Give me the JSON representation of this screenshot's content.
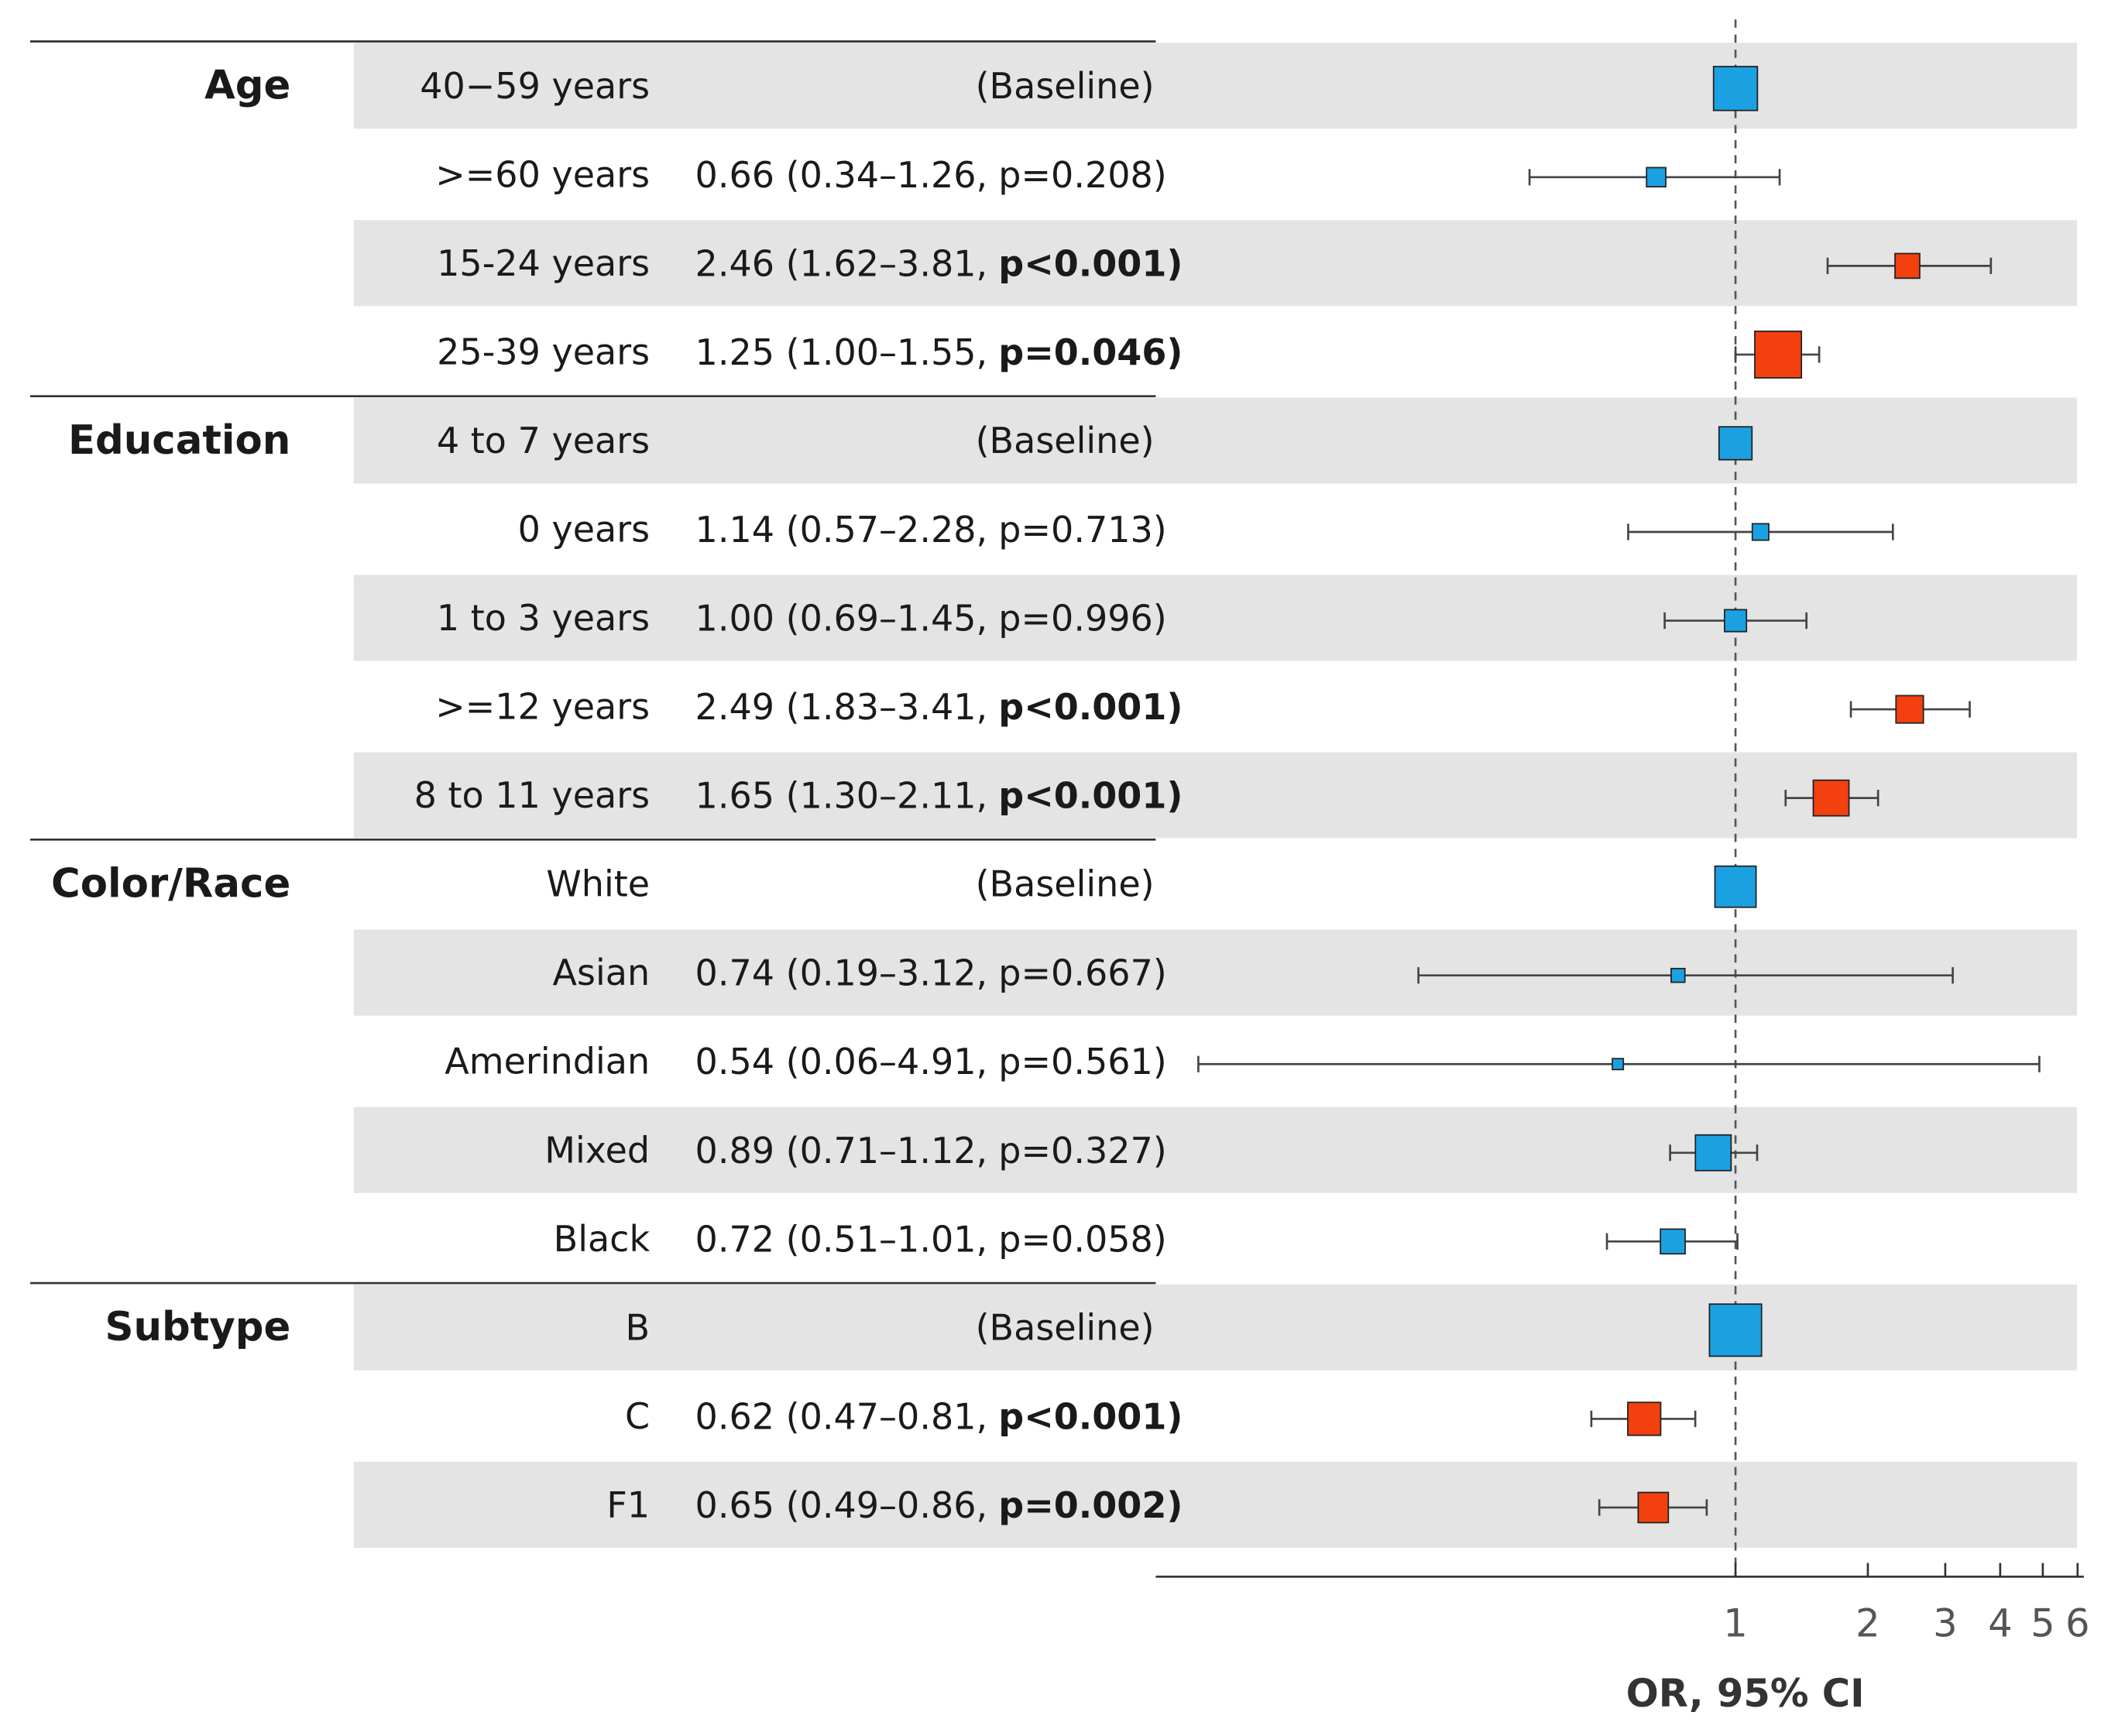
{
  "chart_data": {
    "type": "forest",
    "xlabel": "OR, 95% CI",
    "xscale": "log",
    "xlim": [
      0.048,
      6.2
    ],
    "xticks": [
      1,
      2,
      3,
      4,
      5,
      6
    ],
    "reference_line": 1,
    "groups": [
      {
        "name": "Age",
        "rows": [
          {
            "label": "40−59 years",
            "estimate": 1,
            "note": "(Baseline)",
            "weight": 16,
            "color": "#1ba1e2"
          },
          {
            "label": ">=60 years",
            "estimate": 0.66,
            "ci": [
              0.34,
              1.26
            ],
            "ci_label": "0.66 (0.34–1.26,",
            "p_label": "p=0.208)",
            "significant": false,
            "weight": 7,
            "color": "#1ba1e2"
          },
          {
            "label": "15-24 years",
            "estimate": 2.46,
            "ci": [
              1.62,
              3.81
            ],
            "ci_label": "2.46 (1.62–3.81,",
            "p_label": "p<0.001)",
            "significant": true,
            "weight": 9,
            "color": "#f2400f"
          },
          {
            "label": "25-39 years",
            "estimate": 1.25,
            "ci": [
              1.0,
              1.55
            ],
            "ci_label": "1.25 (1.00–1.55,",
            "p_label": "p=0.046)",
            "significant": true,
            "weight": 17,
            "color": "#f2400f"
          }
        ]
      },
      {
        "name": "Education",
        "rows": [
          {
            "label": "4 to 7 years",
            "estimate": 1,
            "note": "(Baseline)",
            "weight": 12,
            "color": "#1ba1e2"
          },
          {
            "label": "0 years",
            "estimate": 1.14,
            "ci": [
              0.57,
              2.28
            ],
            "ci_label": "1.14 (0.57–2.28,",
            "p_label": "p=0.713)",
            "significant": false,
            "weight": 6,
            "color": "#1ba1e2"
          },
          {
            "label": "1 to 3 years",
            "estimate": 1.0,
            "ci": [
              0.69,
              1.45
            ],
            "ci_label": "1.00 (0.69–1.45,",
            "p_label": "p=0.996)",
            "significant": false,
            "weight": 8,
            "color": "#1ba1e2"
          },
          {
            "label": ">=12 years",
            "estimate": 2.49,
            "ci": [
              1.83,
              3.41
            ],
            "ci_label": "2.49 (1.83–3.41,",
            "p_label": "p<0.001)",
            "significant": true,
            "weight": 10,
            "color": "#f2400f"
          },
          {
            "label": "8 to 11 years",
            "estimate": 1.65,
            "ci": [
              1.3,
              2.11
            ],
            "ci_label": "1.65 (1.30–2.11,",
            "p_label": "p<0.001)",
            "significant": true,
            "weight": 13,
            "color": "#f2400f"
          }
        ]
      },
      {
        "name": "Color/Race",
        "rows": [
          {
            "label": "White",
            "estimate": 1,
            "note": "(Baseline)",
            "weight": 15,
            "color": "#1ba1e2"
          },
          {
            "label": "Asian",
            "estimate": 0.74,
            "ci": [
              0.19,
              3.12
            ],
            "ci_label": "0.74 (0.19–3.12,",
            "p_label": "p=0.667)",
            "significant": false,
            "weight": 5,
            "color": "#1ba1e2"
          },
          {
            "label": "Amerindian",
            "estimate": 0.54,
            "ci": [
              0.06,
              4.91
            ],
            "ci_label": "0.54 (0.06–4.91,",
            "p_label": "p=0.561)",
            "significant": false,
            "weight": 4,
            "color": "#1ba1e2"
          },
          {
            "label": "Mixed",
            "estimate": 0.89,
            "ci": [
              0.71,
              1.12
            ],
            "ci_label": "0.89 (0.71–1.12,",
            "p_label": "p=0.327)",
            "significant": false,
            "weight": 13,
            "color": "#1ba1e2"
          },
          {
            "label": "Black",
            "estimate": 0.72,
            "ci": [
              0.51,
              1.01
            ],
            "ci_label": "0.72 (0.51–1.01,",
            "p_label": "p=0.058)",
            "significant": false,
            "weight": 9,
            "color": "#1ba1e2"
          }
        ]
      },
      {
        "name": "Subtype",
        "rows": [
          {
            "label": "B",
            "estimate": 1,
            "note": "(Baseline)",
            "weight": 19,
            "color": "#1ba1e2"
          },
          {
            "label": "C",
            "estimate": 0.62,
            "ci": [
              0.47,
              0.81
            ],
            "ci_label": "0.62 (0.47–0.81,",
            "p_label": "p<0.001)",
            "significant": true,
            "weight": 12,
            "color": "#f2400f"
          },
          {
            "label": "F1",
            "estimate": 0.65,
            "ci": [
              0.49,
              0.86
            ],
            "ci_label": "0.65 (0.49–0.86,",
            "p_label": "p=0.002)",
            "significant": true,
            "weight": 11,
            "color": "#f2400f"
          }
        ]
      }
    ]
  }
}
